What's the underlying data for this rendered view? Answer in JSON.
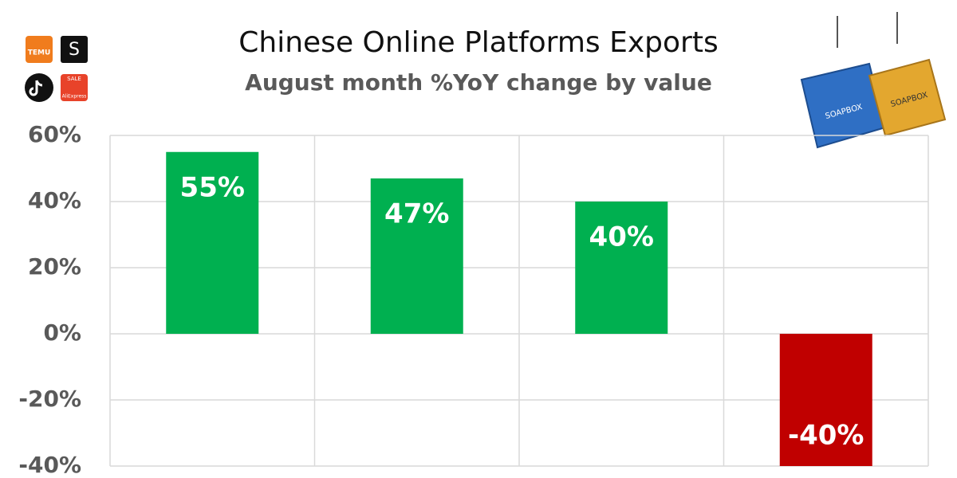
{
  "chart_data": {
    "type": "bar",
    "title": "Chinese Online Platforms Exports",
    "subtitle": "August month %YoY change by value",
    "categories": [
      null,
      null,
      null,
      null
    ],
    "values": [
      55,
      47,
      40,
      -40
    ],
    "value_labels": [
      "55%",
      "47%",
      "40%",
      "-40%"
    ],
    "colors": [
      "#00b050",
      "#00b050",
      "#00b050",
      "#c00000"
    ],
    "ylim": [
      -40,
      60
    ],
    "yticks": [
      {
        "value": -40,
        "label": "-40%"
      },
      {
        "value": -20,
        "label": "-20%"
      },
      {
        "value": 0,
        "label": "0%"
      },
      {
        "value": 20,
        "label": "20%"
      },
      {
        "value": 40,
        "label": "40%"
      },
      {
        "value": 60,
        "label": "60%"
      }
    ],
    "grid": true,
    "logos": [
      "TEMU",
      "S",
      "SALE",
      "AliExpress"
    ],
    "image_texts": [
      "SOAPBOX",
      "SOAPBOX"
    ]
  }
}
